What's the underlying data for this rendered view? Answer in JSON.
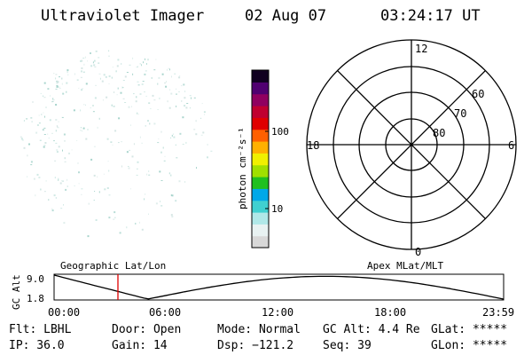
{
  "header": {
    "title": "Ultraviolet Imager",
    "date": "02 Aug 07",
    "time": "03:24:17 UT"
  },
  "colorbar": {
    "label": "photon cm⁻²s⁻¹",
    "ticks": [
      "100",
      "10"
    ],
    "colors": [
      "#d8d8d8",
      "#e8f2f2",
      "#b0e8e8",
      "#40d0d0",
      "#00a8e8",
      "#20c020",
      "#a0e000",
      "#f0f000",
      "#ffb000",
      "#ff6000",
      "#e00000",
      "#c00030",
      "#900060",
      "#500070",
      "#100020"
    ]
  },
  "polar_plot": {
    "mlt_labels": [
      "12",
      "18",
      "6",
      "0"
    ],
    "lat_labels": [
      "60",
      "70",
      "80"
    ]
  },
  "altitude_panel": {
    "ylabel": "GC Alt",
    "ymax_label": "9.0",
    "ymin_label": "1.8",
    "left_title": "Geographic Lat/Lon",
    "right_title": "Apex MLat/MLT",
    "time_ticks": [
      "00:00",
      "06:00",
      "12:00",
      "18:00",
      "23:59"
    ],
    "cursor_time": "03:24:17",
    "line_color": "#000000",
    "cursor_color": "#e00000"
  },
  "footer": {
    "flt": "Flt: LBHL",
    "door": "Door: Open",
    "mode": "Mode: Normal",
    "gc_alt": "GC Alt: 4.4 Re",
    "glat": "GLat: *****",
    "ip": "IP: 36.0",
    "gain": "Gain: 14",
    "dsp": "Dsp: −121.2",
    "seq": "Seq: 39",
    "glon": "GLon: *****"
  }
}
